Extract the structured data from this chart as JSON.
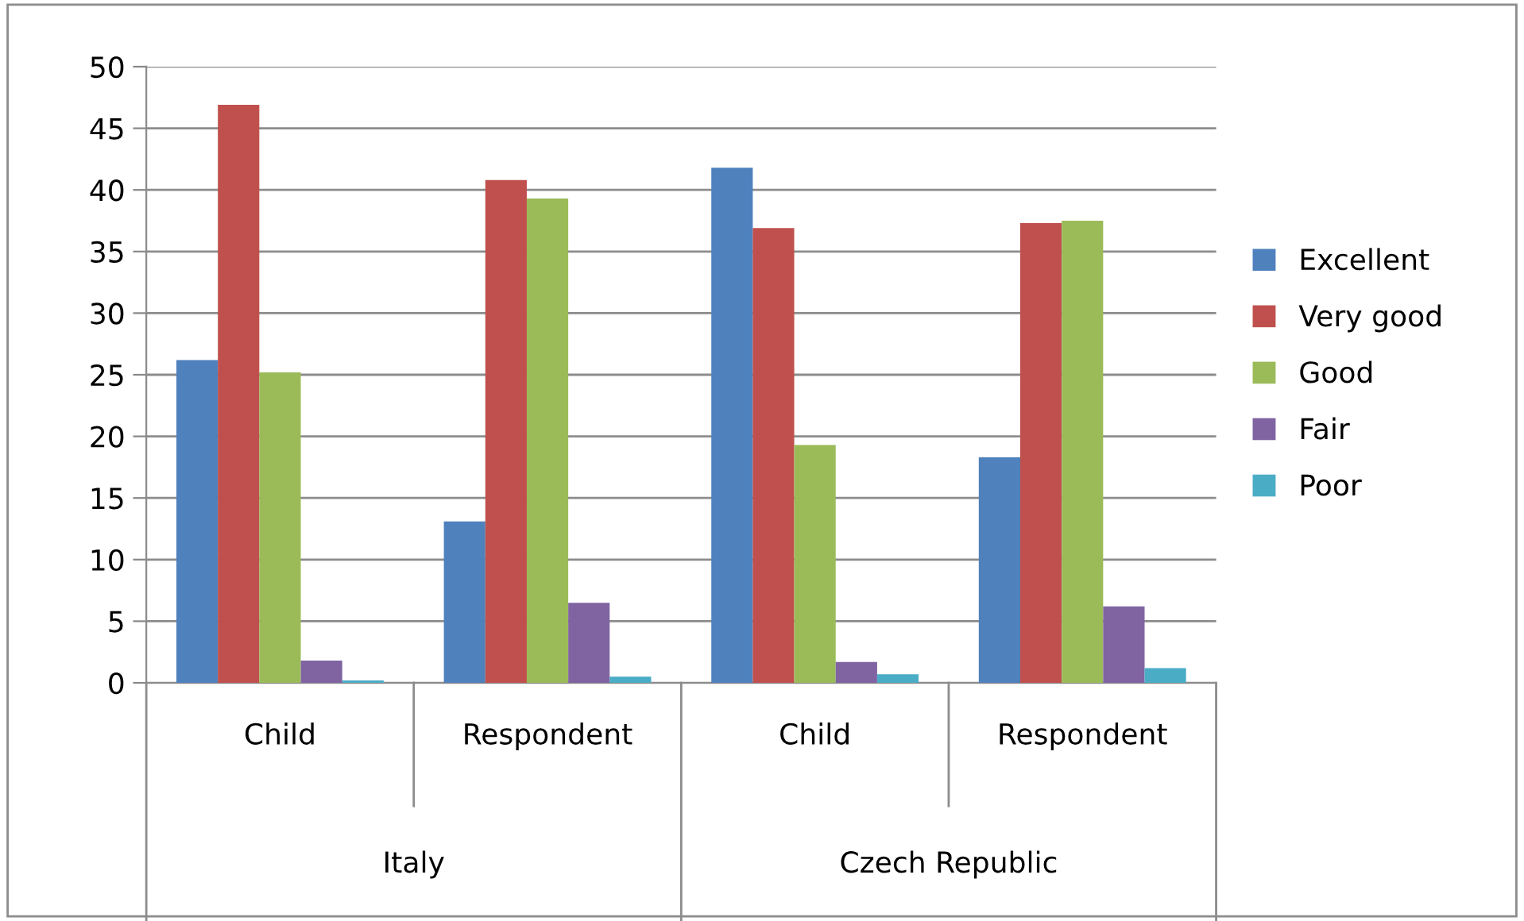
{
  "chart_data": {
    "type": "bar",
    "categories": [
      "Child",
      "Respondent",
      "Child",
      "Respondent"
    ],
    "series": [
      {
        "name": "Excellent",
        "color": "#4f81bd",
        "values": [
          26.2,
          13.1,
          41.8,
          18.3
        ]
      },
      {
        "name": "Very good",
        "color": "#c0504d",
        "values": [
          46.9,
          40.8,
          36.9,
          37.3
        ]
      },
      {
        "name": "Good",
        "color": "#9bbb59",
        "values": [
          25.2,
          39.3,
          19.3,
          37.5
        ]
      },
      {
        "name": "Fair",
        "color": "#8064a2",
        "values": [
          1.8,
          6.5,
          1.7,
          6.2
        ]
      },
      {
        "name": "Poor",
        "color": "#4bacc6",
        "values": [
          0.2,
          0.5,
          0.7,
          1.2
        ]
      }
    ],
    "annotations": [
      "Italy",
      "Czech Republic"
    ],
    "ylim": [
      0,
      50
    ],
    "yticks": [
      0,
      5,
      10,
      15,
      20,
      25,
      30,
      35,
      40,
      45,
      50
    ],
    "grid": "y",
    "legend": "right"
  }
}
